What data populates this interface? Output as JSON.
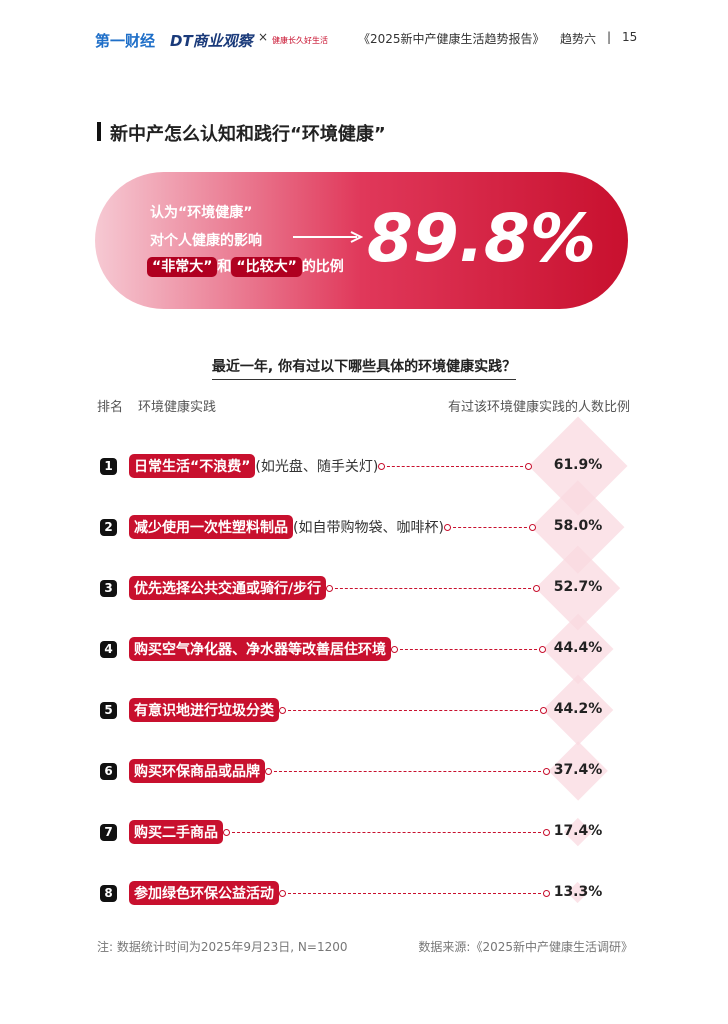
{
  "header": {
    "brand1": "第一财经",
    "brand2": "DT商业观察",
    "cross": "×",
    "brand3": "健康长久好生活",
    "report": "《2025新中产健康生活趋势报告》",
    "section": "趋势六",
    "divider": "|",
    "page": "15"
  },
  "title": "新中产怎么认知和践行“环境健康”",
  "banner": {
    "line1": "认为“环境健康”",
    "line2": "对个人健康的影响",
    "hl1": "“非常大”",
    "mid": "和",
    "hl2": "“比较大”",
    "tail": "的比例",
    "stat": "89.8%"
  },
  "question": "最近一年, 你有过以下哪些具体的环境健康实践？",
  "columns": {
    "rank": "排名",
    "practice": "环境健康实践",
    "ratio": "有过该环境健康实践的人数比例"
  },
  "items": [
    {
      "rank": 1,
      "label": "日常生活“不浪费”",
      "note": "(如光盘、随手关灯)",
      "value": 61.9,
      "value_label": "61.9%"
    },
    {
      "rank": 2,
      "label": "减少使用一次性塑料制品",
      "note": "(如自带购物袋、咖啡杯)",
      "value": 58.0,
      "value_label": "58.0%"
    },
    {
      "rank": 3,
      "label": "优先选择公共交通或骑行/步行",
      "value": 52.7,
      "value_label": "52.7%"
    },
    {
      "rank": 4,
      "label": "购买空气净化器、净水器等改善居住环境",
      "value": 44.4,
      "value_label": "44.4%"
    },
    {
      "rank": 5,
      "label": "有意识地进行垃圾分类",
      "value": 44.2,
      "value_label": "44.2%"
    },
    {
      "rank": 6,
      "label": "购买环保商品或品牌",
      "value": 37.4,
      "value_label": "37.4%"
    },
    {
      "rank": 7,
      "label": "购买二手商品",
      "value": 17.4,
      "value_label": "17.4%"
    },
    {
      "rank": 8,
      "label": "参加绿色环保公益活动",
      "value": 13.3,
      "value_label": "13.3%"
    }
  ],
  "footer": {
    "note": "注: 数据统计时间为2025年9月23日, N=1200",
    "source": "数据来源:《2025新中产健康生活调研》"
  }
}
